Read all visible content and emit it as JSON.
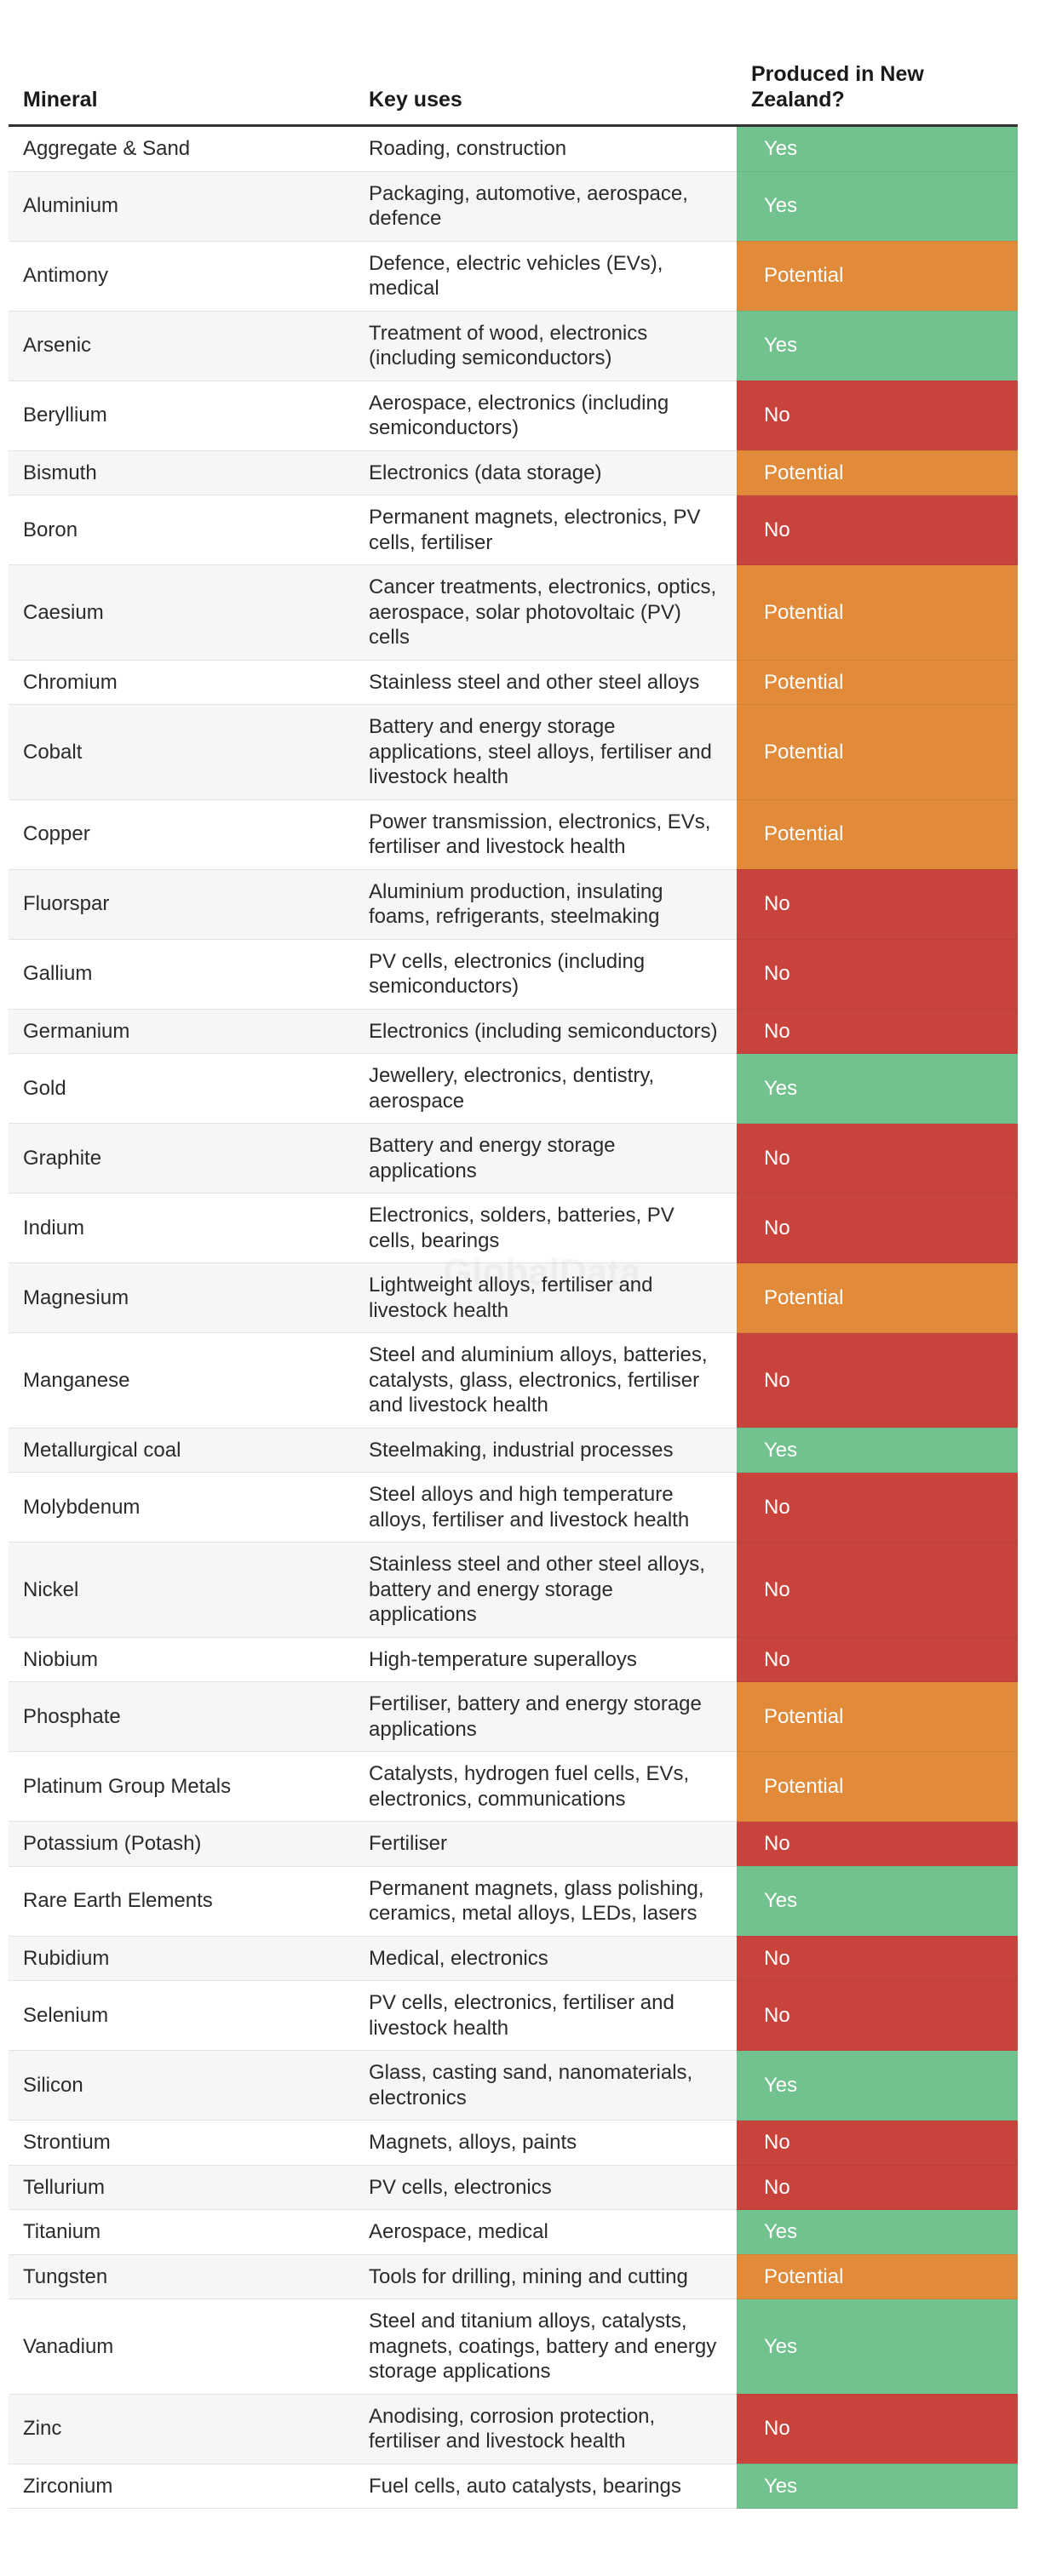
{
  "table": {
    "columns": [
      "Mineral",
      "Key uses",
      "Produced in New Zealand?"
    ],
    "status_colors": {
      "Yes": "#72c28f",
      "Potential": "#e08a3a",
      "No": "#c9433d"
    },
    "rows": [
      [
        "Aggregate & Sand",
        "Roading, construction",
        "Yes"
      ],
      [
        "Aluminium",
        "Packaging, automotive, aerospace, defence",
        "Yes"
      ],
      [
        "Antimony",
        "Defence, electric vehicles (EVs), medical",
        "Potential"
      ],
      [
        "Arsenic",
        "Treatment of wood, electronics (including semiconductors)",
        "Yes"
      ],
      [
        "Beryllium",
        "Aerospace, electronics (including semiconductors)",
        "No"
      ],
      [
        "Bismuth",
        "Electronics (data storage)",
        "Potential"
      ],
      [
        "Boron",
        "Permanent magnets, electronics, PV cells, fertiliser",
        "No"
      ],
      [
        "Caesium",
        "Cancer treatments, electronics, optics, aerospace, solar photovoltaic (PV) cells",
        "Potential"
      ],
      [
        "Chromium",
        "Stainless steel and other steel alloys",
        "Potential"
      ],
      [
        "Cobalt",
        "Battery and energy storage applications, steel alloys, fertiliser and livestock health",
        "Potential"
      ],
      [
        "Copper",
        "Power transmission, electronics, EVs, fertiliser and livestock health",
        "Potential"
      ],
      [
        "Fluorspar",
        "Aluminium production, insulating foams, refrigerants, steelmaking",
        "No"
      ],
      [
        "Gallium",
        "PV cells, electronics (including semiconductors)",
        "No"
      ],
      [
        "Germanium",
        "Electronics (including semiconductors)",
        "No"
      ],
      [
        "Gold",
        "Jewellery, electronics, dentistry, aerospace",
        "Yes"
      ],
      [
        "Graphite",
        "Battery and energy storage applications",
        "No"
      ],
      [
        "Indium",
        "Electronics, solders, batteries, PV cells, bearings",
        "No"
      ],
      [
        "Magnesium",
        "Lightweight alloys, fertiliser and livestock health",
        "Potential"
      ],
      [
        "Manganese",
        "Steel and aluminium alloys, batteries, catalysts, glass, electronics, fertiliser and livestock health",
        "No"
      ],
      [
        "Metallurgical coal",
        "Steelmaking, industrial processes",
        "Yes"
      ],
      [
        "Molybdenum",
        "Steel alloys and high temperature alloys, fertiliser and livestock health",
        "No"
      ],
      [
        "Nickel",
        "Stainless steel and other steel alloys, battery and energy storage applications",
        "No"
      ],
      [
        "Niobium",
        "High-temperature superalloys",
        "No"
      ],
      [
        "Phosphate",
        "Fertiliser, battery and energy storage applications",
        "Potential"
      ],
      [
        "Platinum Group Metals",
        "Catalysts, hydrogen fuel cells, EVs, electronics, communications",
        "Potential"
      ],
      [
        "Potassium (Potash)",
        "Fertiliser",
        "No"
      ],
      [
        "Rare Earth Elements",
        "Permanent magnets, glass polishing, ceramics, metal alloys, LEDs, lasers",
        "Yes"
      ],
      [
        "Rubidium",
        "Medical, electronics",
        "No"
      ],
      [
        "Selenium",
        "PV cells, electronics, fertiliser and livestock health",
        "No"
      ],
      [
        "Silicon",
        "Glass, casting sand, nanomaterials, electronics",
        "Yes"
      ],
      [
        "Strontium",
        "Magnets, alloys, paints",
        "No"
      ],
      [
        "Tellurium",
        "PV cells, electronics",
        "No"
      ],
      [
        "Titanium",
        "Aerospace, medical",
        "Yes"
      ],
      [
        "Tungsten",
        "Tools for drilling, mining and cutting",
        "Potential"
      ],
      [
        "Vanadium",
        "Steel and titanium alloys, catalysts, magnets, coatings, battery and energy storage applications",
        "Yes"
      ],
      [
        "Zinc",
        "Anodising, corrosion protection, fertiliser and livestock health",
        "No"
      ],
      [
        "Zirconium",
        "Fuel cells, auto catalysts, bearings",
        "Yes"
      ]
    ]
  },
  "watermark": "GlobalData"
}
